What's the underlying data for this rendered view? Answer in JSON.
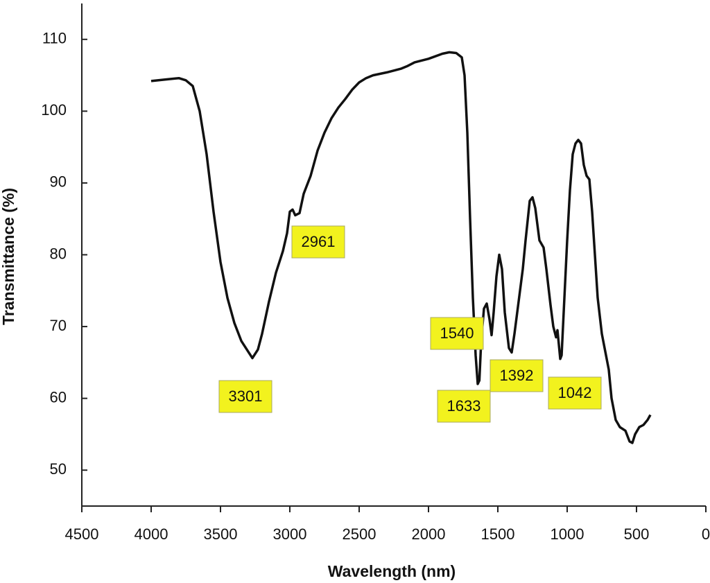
{
  "chart_data": {
    "type": "line",
    "x_label": "Wavelength (nm)",
    "y_label": "Transmittance (%)",
    "xlim": [
      4500,
      0
    ],
    "ylim": [
      45,
      115
    ],
    "xticks": [
      4500,
      4000,
      3500,
      3000,
      2500,
      2000,
      1500,
      1000,
      500,
      0
    ],
    "yticks": [
      50,
      60,
      70,
      80,
      90,
      100,
      110
    ],
    "grid": false,
    "series": [
      {
        "color": "#111111",
        "x": [
          4000,
          3900,
          3800,
          3750,
          3700,
          3650,
          3600,
          3550,
          3500,
          3450,
          3400,
          3350,
          3300,
          3270,
          3230,
          3200,
          3150,
          3100,
          3050,
          3020,
          3000,
          2980,
          2961,
          2930,
          2900,
          2850,
          2800,
          2750,
          2700,
          2650,
          2600,
          2550,
          2500,
          2450,
          2400,
          2300,
          2200,
          2150,
          2100,
          2000,
          1900,
          1850,
          1800,
          1760,
          1740,
          1720,
          1700,
          1680,
          1660,
          1645,
          1633,
          1620,
          1600,
          1580,
          1560,
          1545,
          1530,
          1510,
          1490,
          1470,
          1450,
          1420,
          1400,
          1380,
          1350,
          1320,
          1300,
          1270,
          1250,
          1230,
          1200,
          1170,
          1150,
          1120,
          1100,
          1080,
          1070,
          1050,
          1040,
          1020,
          1000,
          980,
          960,
          940,
          920,
          900,
          880,
          860,
          840,
          820,
          800,
          780,
          750,
          700,
          680,
          650,
          620,
          580,
          550,
          530,
          510,
          480,
          450,
          420,
          400
        ],
        "values": [
          104.2,
          104.4,
          104.6,
          104.3,
          103.5,
          100,
          94,
          86,
          79,
          74,
          70.5,
          68,
          66.5,
          65.6,
          66.8,
          69,
          73.5,
          77.5,
          80.5,
          83,
          86,
          86.3,
          85.5,
          85.8,
          88.5,
          91,
          94.5,
          97,
          99,
          100.5,
          101.7,
          103,
          104,
          104.6,
          105,
          105.4,
          105.9,
          106.3,
          106.8,
          107.3,
          108,
          108.2,
          108.1,
          107.5,
          105,
          97,
          85,
          74,
          66,
          62,
          62.5,
          68,
          72.5,
          73.2,
          71,
          68.8,
          72,
          77,
          80,
          78,
          72,
          67,
          66.4,
          69,
          73.5,
          78,
          82,
          87.5,
          88,
          86.5,
          82,
          81,
          78,
          73,
          70,
          68.5,
          69.5,
          65.5,
          66,
          74,
          82,
          89,
          94,
          95.5,
          96,
          95.5,
          92.5,
          91,
          90.5,
          86,
          80,
          74,
          69,
          64,
          60,
          57,
          56,
          55.5,
          54,
          53.8,
          55,
          56,
          56.3,
          57,
          57.7
        ]
      }
    ],
    "annotations": [
      "3301",
      "2961",
      "1540",
      "1633",
      "1392",
      "1042"
    ]
  }
}
